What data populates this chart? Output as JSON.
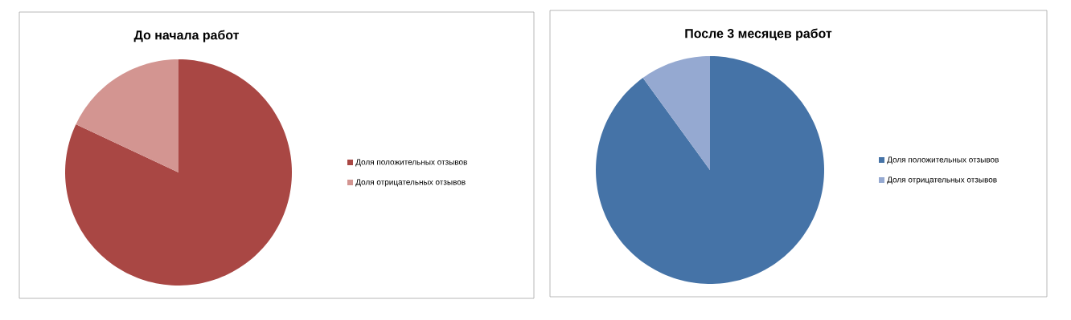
{
  "chart_data": [
    {
      "type": "pie",
      "title": "До начала работ",
      "categories": [
        "Доля положительных отзывов",
        "Доля отрицательных отзывов"
      ],
      "values": [
        82,
        18
      ],
      "colors": [
        "#a94744",
        "#d39591"
      ],
      "legend": "right"
    },
    {
      "type": "pie",
      "title": "После 3 месяцев работ",
      "categories": [
        "Доля положительных отзывов",
        "Доля отрицательных отзывов"
      ],
      "values": [
        90,
        10
      ],
      "colors": [
        "#4573a7",
        "#95a9d1"
      ],
      "legend": "right"
    }
  ]
}
